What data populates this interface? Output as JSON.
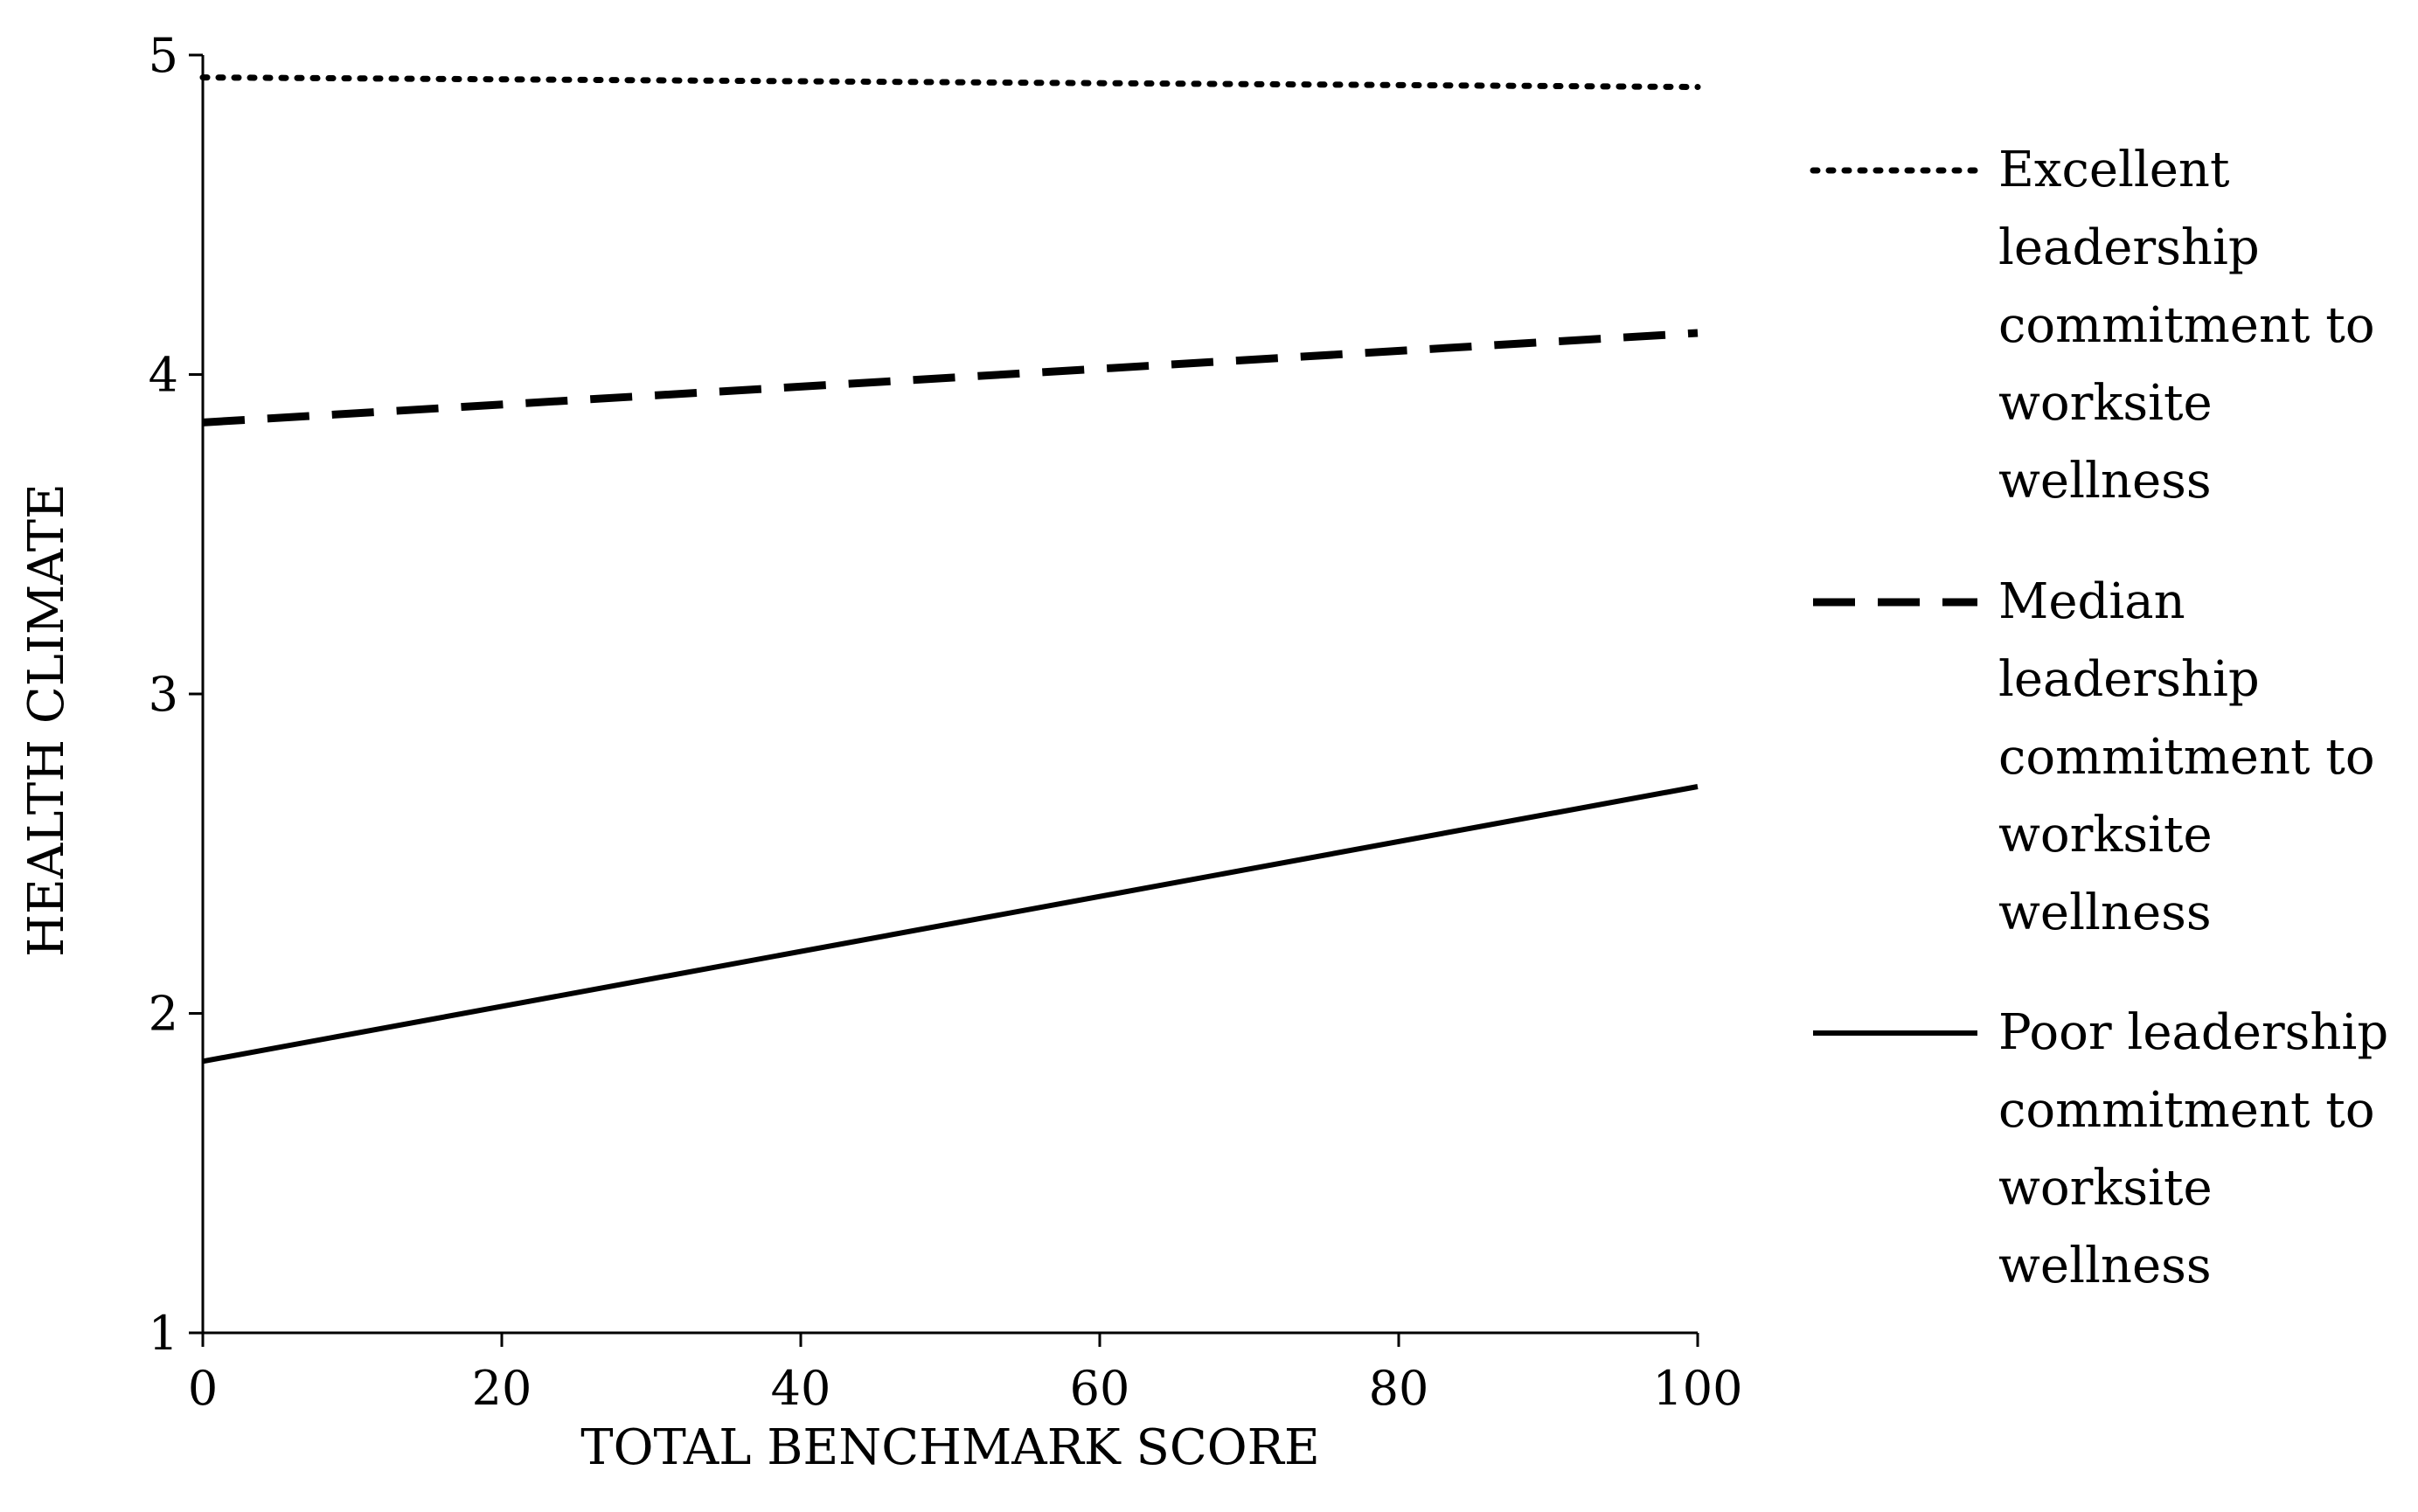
{
  "chart_data": {
    "type": "line",
    "title": "",
    "xlabel": "TOTAL BENCHMARK SCORE",
    "ylabel": "HEALTH CLIMATE",
    "xlim": [
      0,
      100
    ],
    "ylim": [
      1,
      5
    ],
    "x_ticks": [
      "0",
      "20",
      "40",
      "60",
      "80",
      "100"
    ],
    "y_ticks": [
      "1",
      "2",
      "3",
      "4",
      "5"
    ],
    "grid": false,
    "legend_position": "right",
    "series": [
      {
        "name": "Excellent leadership commitment to worksite wellness",
        "legend_lines": [
          "Excellent",
          "leadership",
          "commitment to",
          "worksite",
          "wellness"
        ],
        "style": "dotted",
        "color": "#000000",
        "x": [
          0,
          100
        ],
        "y": [
          4.93,
          4.9
        ]
      },
      {
        "name": "Median leadership commitment to worksite wellness",
        "legend_lines": [
          "Median",
          "leadership",
          "commitment to",
          "worksite",
          "wellness"
        ],
        "style": "dashed",
        "color": "#000000",
        "x": [
          0,
          100
        ],
        "y": [
          3.85,
          4.13
        ]
      },
      {
        "name": "Poor leadership commitment to worksite wellness",
        "legend_lines": [
          "Poor leadership",
          "commitment to",
          "worksite",
          "wellness"
        ],
        "style": "solid",
        "color": "#000000",
        "x": [
          0,
          100
        ],
        "y": [
          1.85,
          2.71
        ]
      }
    ]
  }
}
